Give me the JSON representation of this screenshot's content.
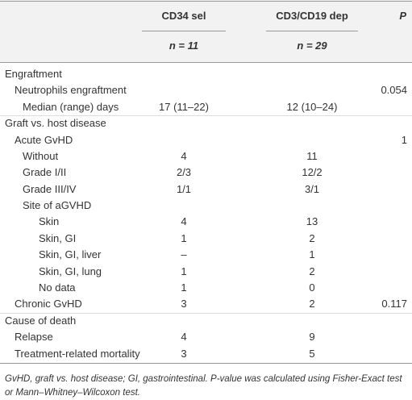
{
  "table": {
    "header": [
      "CD34 sel",
      "CD3/CD19 dep",
      "P"
    ],
    "subheader": [
      "n = 11",
      "n = 29"
    ],
    "rows": [
      {
        "label": "Engraftment"
      },
      {
        "label": "Neutrophils engraftment",
        "p": "0.054"
      },
      {
        "label": "Median (range) days",
        "cd34": "17 (11–22)",
        "cd3": "12 (10–24)"
      },
      {
        "label": "Graft vs. host disease"
      },
      {
        "label": "Acute GvHD",
        "p": "1"
      },
      {
        "label": "Without",
        "cd34": "4",
        "cd3": "11"
      },
      {
        "label": "Grade I/II",
        "cd34": "2/3",
        "cd3": "12/2"
      },
      {
        "label": "Grade III/IV",
        "cd34": "1/1",
        "cd3": "3/1"
      },
      {
        "label": "Site of aGVHD"
      },
      {
        "label": "Skin",
        "cd34": "4",
        "cd3": "13"
      },
      {
        "label": "Skin, GI",
        "cd34": "1",
        "cd3": "2"
      },
      {
        "label": "Skin, GI, liver",
        "cd34": "–",
        "cd3": "1"
      },
      {
        "label": "Skin, GI, lung",
        "cd34": "1",
        "cd3": "2"
      },
      {
        "label": "No data",
        "cd34": "1",
        "cd3": "0"
      },
      {
        "label": "Chronic GvHD",
        "cd34": "3",
        "cd3": "2",
        "p": "0.117"
      },
      {
        "label": "Cause of death"
      },
      {
        "label": "Relapse",
        "cd34": "4",
        "cd3": "9"
      },
      {
        "label": "Treatment-related mortality",
        "cd34": "3",
        "cd3": "5"
      }
    ],
    "footnote": "GvHD, graft vs. host disease; GI, gastrointestinal. P-value was calculated using Fisher-Exact test or Mann–Whitney–Wilcoxon test."
  }
}
